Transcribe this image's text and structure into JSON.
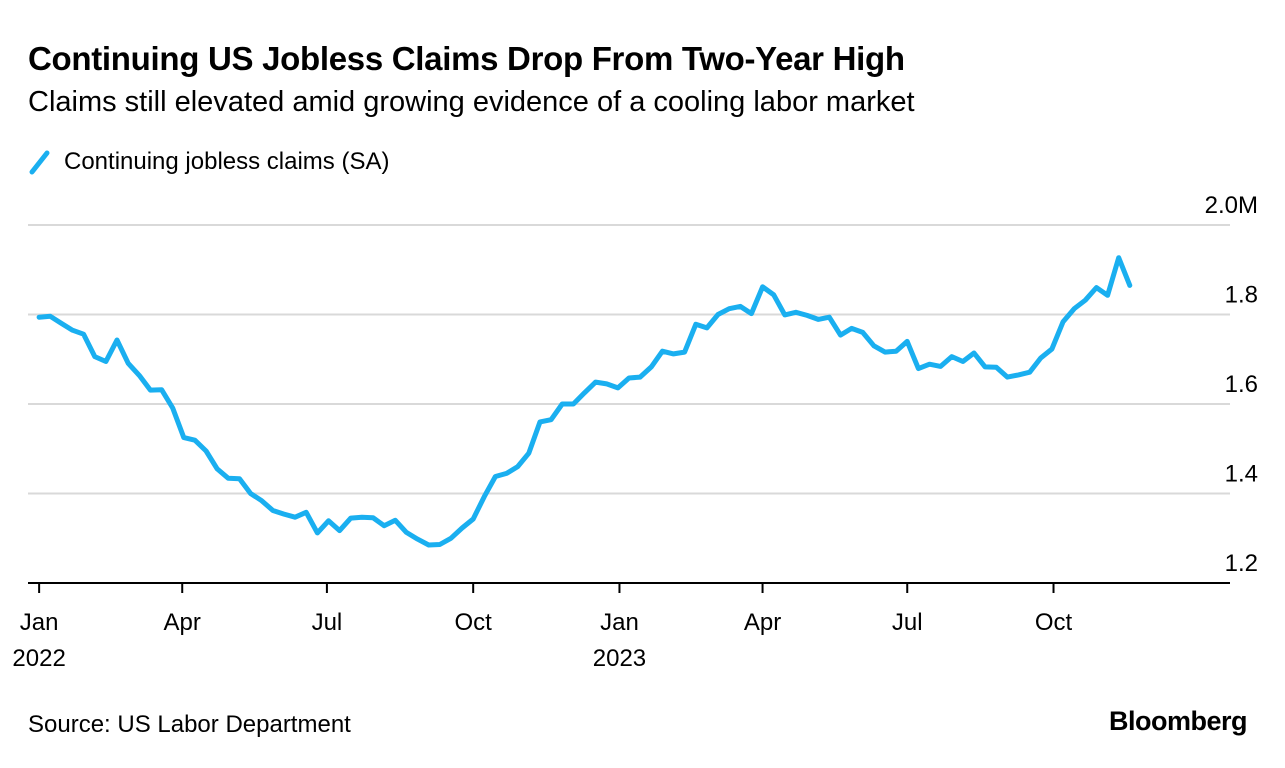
{
  "header": {
    "title": "Continuing US Jobless Claims Drop From Two-Year High",
    "subtitle": "Claims still elevated amid growing evidence of a cooling labor market"
  },
  "legend": {
    "label": "Continuing jobless claims (SA)",
    "color": "#1AAFF0"
  },
  "footer": {
    "source": "Source: US Labor Department",
    "brand": "Bloomberg"
  },
  "chart_data": {
    "type": "line",
    "title": "Continuing US Jobless Claims Drop From Two-Year High",
    "subtitle": "Claims still elevated amid growing evidence of a cooling labor market",
    "xlabel": "",
    "ylabel": "",
    "unit": "M",
    "ylim": [
      1.2,
      2.0
    ],
    "xlim": [
      "2021-12-25",
      "2024-01-20"
    ],
    "y_ticks": [
      {
        "value": 2.0,
        "label": "2.0M"
      },
      {
        "value": 1.8,
        "label": "1.8"
      },
      {
        "value": 1.6,
        "label": "1.6"
      },
      {
        "value": 1.4,
        "label": "1.4"
      },
      {
        "value": 1.2,
        "label": "1.2"
      }
    ],
    "x_ticks": [
      {
        "date": "2022-01-01",
        "label": "Jan",
        "year": "2022"
      },
      {
        "date": "2022-04-01",
        "label": "Apr",
        "year": ""
      },
      {
        "date": "2022-07-01",
        "label": "Jul",
        "year": ""
      },
      {
        "date": "2022-10-01",
        "label": "Oct",
        "year": ""
      },
      {
        "date": "2023-01-01",
        "label": "Jan",
        "year": "2023"
      },
      {
        "date": "2023-04-01",
        "label": "Apr",
        "year": ""
      },
      {
        "date": "2023-07-01",
        "label": "Jul",
        "year": ""
      },
      {
        "date": "2023-10-01",
        "label": "Oct",
        "year": ""
      }
    ],
    "grid": true,
    "legend_position": "top-left",
    "series": [
      {
        "name": "Continuing jobless claims (SA)",
        "color": "#1AAFF0",
        "x": [
          "2022-01-01",
          "2022-01-08",
          "2022-01-15",
          "2022-01-22",
          "2022-01-29",
          "2022-02-05",
          "2022-02-12",
          "2022-02-19",
          "2022-02-26",
          "2022-03-05",
          "2022-03-12",
          "2022-03-19",
          "2022-03-26",
          "2022-04-02",
          "2022-04-09",
          "2022-04-16",
          "2022-04-23",
          "2022-04-30",
          "2022-05-07",
          "2022-05-14",
          "2022-05-21",
          "2022-05-28",
          "2022-06-04",
          "2022-06-11",
          "2022-06-18",
          "2022-06-25",
          "2022-07-02",
          "2022-07-09",
          "2022-07-16",
          "2022-07-23",
          "2022-07-30",
          "2022-08-06",
          "2022-08-13",
          "2022-08-20",
          "2022-08-27",
          "2022-09-03",
          "2022-09-10",
          "2022-09-17",
          "2022-09-24",
          "2022-10-01",
          "2022-10-08",
          "2022-10-15",
          "2022-10-22",
          "2022-10-29",
          "2022-11-05",
          "2022-11-12",
          "2022-11-19",
          "2022-11-26",
          "2022-12-03",
          "2022-12-10",
          "2022-12-17",
          "2022-12-24",
          "2022-12-31",
          "2023-01-07",
          "2023-01-14",
          "2023-01-21",
          "2023-01-28",
          "2023-02-04",
          "2023-02-11",
          "2023-02-18",
          "2023-02-25",
          "2023-03-04",
          "2023-03-11",
          "2023-03-18",
          "2023-03-25",
          "2023-04-01",
          "2023-04-08",
          "2023-04-15",
          "2023-04-22",
          "2023-04-29",
          "2023-05-06",
          "2023-05-13",
          "2023-05-20",
          "2023-05-27",
          "2023-06-03",
          "2023-06-10",
          "2023-06-17",
          "2023-06-24",
          "2023-07-01",
          "2023-07-08",
          "2023-07-15",
          "2023-07-22",
          "2023-07-29",
          "2023-08-05",
          "2023-08-12",
          "2023-08-19",
          "2023-08-26",
          "2023-09-02",
          "2023-09-09",
          "2023-09-16",
          "2023-09-23",
          "2023-09-30",
          "2023-10-07",
          "2023-10-14",
          "2023-10-21",
          "2023-10-28",
          "2023-11-04",
          "2023-11-11",
          "2023-11-18"
        ],
        "values": [
          1.794,
          1.796,
          1.78,
          1.765,
          1.756,
          1.706,
          1.695,
          1.743,
          1.691,
          1.664,
          1.631,
          1.632,
          1.591,
          1.525,
          1.519,
          1.495,
          1.455,
          1.434,
          1.433,
          1.4,
          1.384,
          1.362,
          1.354,
          1.347,
          1.358,
          1.312,
          1.339,
          1.317,
          1.345,
          1.347,
          1.346,
          1.328,
          1.34,
          1.313,
          1.298,
          1.285,
          1.286,
          1.3,
          1.323,
          1.343,
          1.393,
          1.438,
          1.445,
          1.46,
          1.49,
          1.56,
          1.565,
          1.6,
          1.6,
          1.625,
          1.649,
          1.645,
          1.636,
          1.658,
          1.66,
          1.683,
          1.718,
          1.712,
          1.716,
          1.778,
          1.77,
          1.8,
          1.813,
          1.818,
          1.802,
          1.862,
          1.844,
          1.799,
          1.805,
          1.798,
          1.789,
          1.794,
          1.754,
          1.769,
          1.76,
          1.73,
          1.716,
          1.718,
          1.74,
          1.679,
          1.689,
          1.684,
          1.706,
          1.695,
          1.714,
          1.683,
          1.682,
          1.66,
          1.665,
          1.671,
          1.703,
          1.723,
          1.784,
          1.813,
          1.832,
          1.86,
          1.843,
          1.927,
          1.865
        ]
      }
    ]
  }
}
